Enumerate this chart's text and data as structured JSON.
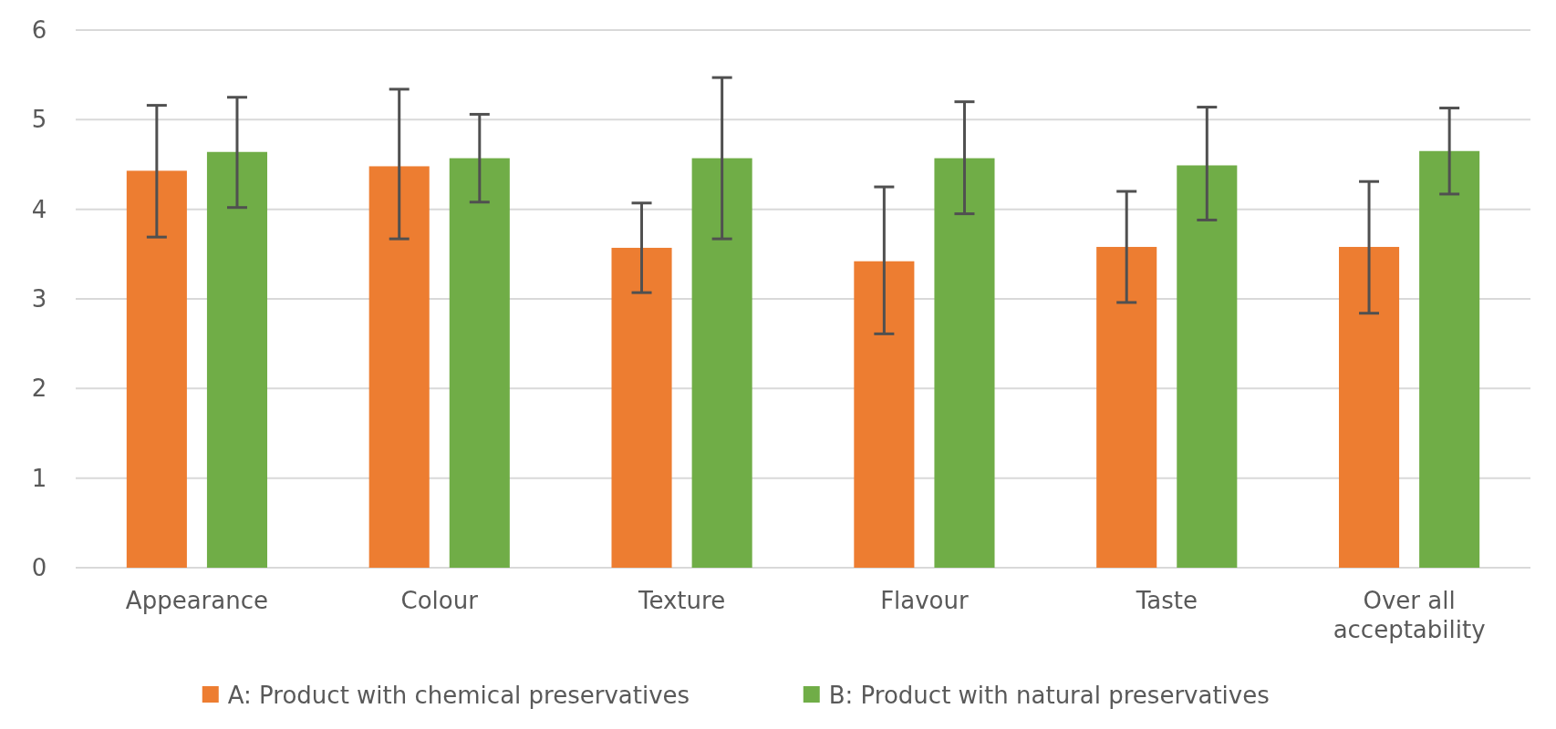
{
  "chart_data": {
    "type": "bar",
    "categories": [
      "Appearance",
      "Colour",
      "Texture",
      "Flavour",
      "Taste",
      "Over all acceptability"
    ],
    "series": [
      {
        "name": "A: Product with chemical preservatives",
        "color": "#ed7d31",
        "values": [
          4.43,
          4.48,
          3.57,
          3.42,
          3.58,
          3.58
        ],
        "errors": [
          [
            3.69,
            5.16
          ],
          [
            3.67,
            5.34
          ],
          [
            3.07,
            4.07
          ],
          [
            2.61,
            4.25
          ],
          [
            2.96,
            4.2
          ],
          [
            2.84,
            4.31
          ]
        ]
      },
      {
        "name": "B: Product with natural preservatives",
        "color": "#70ad47",
        "values": [
          4.64,
          4.57,
          4.57,
          4.57,
          4.49,
          4.65
        ],
        "errors": [
          [
            4.02,
            5.25
          ],
          [
            4.08,
            5.06
          ],
          [
            3.67,
            5.47
          ],
          [
            3.95,
            5.2
          ],
          [
            3.88,
            5.14
          ],
          [
            4.17,
            5.13
          ]
        ]
      }
    ],
    "ylim": [
      0,
      6
    ],
    "yticks": [
      0,
      1,
      2,
      3,
      4,
      5,
      6
    ],
    "grid": "y",
    "legend": "bottom"
  }
}
